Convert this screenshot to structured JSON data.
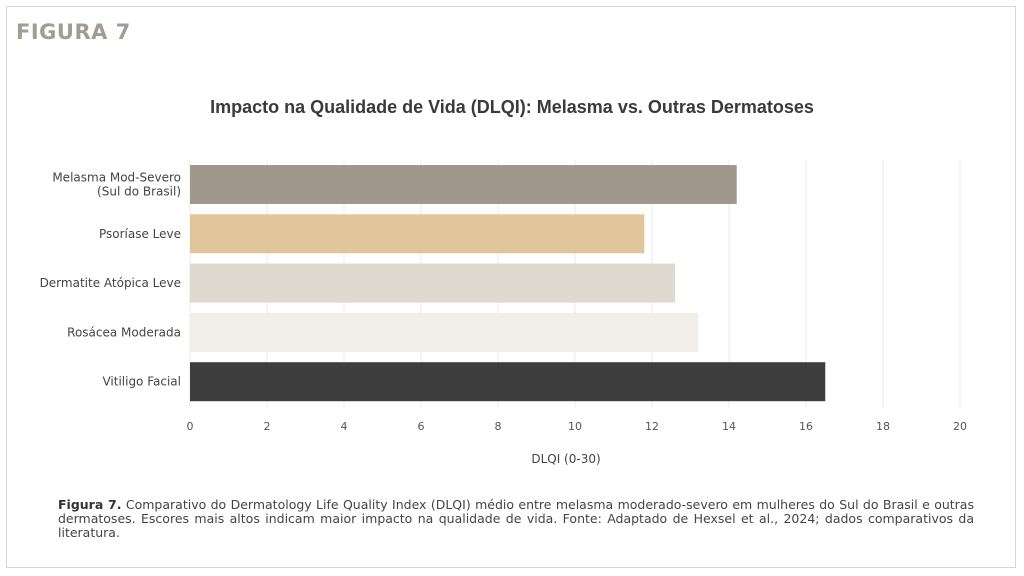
{
  "figure_label": "FIGURA 7",
  "chart_data": {
    "type": "bar",
    "orientation": "horizontal",
    "title": "Impacto na Qualidade de Vida (DLQI): Melasma vs. Outras Dermatoses",
    "xlabel": "DLQI (0-30)",
    "ylabel": "",
    "xlim": [
      0,
      20
    ],
    "xticks": [
      0,
      2,
      4,
      6,
      8,
      10,
      12,
      14,
      16,
      18,
      20
    ],
    "grid": true,
    "categories": [
      [
        "Melasma Mod-Severo",
        "(Sul do Brasil)"
      ],
      [
        "Psoríase Leve"
      ],
      [
        "Dermatite Atópica Leve"
      ],
      [
        "Rosácea Moderada"
      ],
      [
        "Vitiligo Facial"
      ]
    ],
    "values": [
      14.2,
      11.8,
      12.6,
      13.2,
      16.5
    ],
    "colors": [
      "#a0978d",
      "#e2c59b",
      "#dedad0",
      "#f2efe9",
      "#3e3e3e"
    ]
  },
  "caption": {
    "prefix": "Figura 7.",
    "text": "Comparativo do Dermatology Life Quality Index (DLQI) médio entre melasma moderado-severo em mulheres do Sul do Brasil e outras dermatoses. Escores mais altos indicam maior impacto na qualidade de vida. Fonte: Adaptado de Hexsel et al., 2024; dados comparativos da literatura."
  }
}
